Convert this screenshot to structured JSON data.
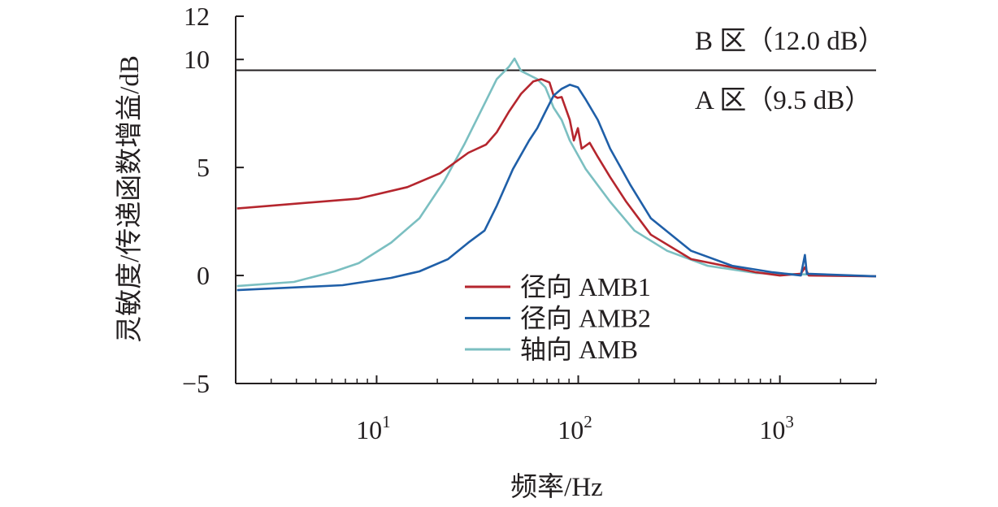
{
  "chart_data": {
    "type": "line",
    "xlabel": "频率/Hz",
    "ylabel": "灵敏度/传递函数增益/dB",
    "xscale": "log",
    "xlim": [
      2,
      3000
    ],
    "ylim": [
      -5,
      12
    ],
    "yticks": [
      -5,
      0,
      5,
      10,
      12
    ],
    "ytick_labels": [
      "−5",
      "0",
      "5",
      "10",
      "12"
    ],
    "xticks": [
      10,
      100,
      1000
    ],
    "xtick_labels": [
      {
        "base": "10",
        "exp": "1"
      },
      {
        "base": "10",
        "exp": "2"
      },
      {
        "base": "10",
        "exp": "3"
      }
    ],
    "grid": false,
    "legend_position": "center-bottom",
    "threshold": {
      "value": 9.5,
      "color": "#231f20"
    },
    "annotations": [
      {
        "text": "B 区（12.0 dB）",
        "zone": "above threshold"
      },
      {
        "text": "A 区（9.5 dB）",
        "zone": "below threshold"
      }
    ],
    "series": [
      {
        "name": "径向 AMB1",
        "color": "#b5262e",
        "x": [
          2.03,
          8.15,
          14.2,
          20.6,
          28.5,
          34.9,
          39.4,
          45.3,
          52,
          59.8,
          65.6,
          72,
          75.5,
          78.9,
          82.7,
          90.8,
          95.1,
          99.6,
          104,
          114,
          125,
          144,
          173,
          229,
          363,
          580,
          762,
          1000,
          1270,
          1330,
          1390,
          3000
        ],
        "y": [
          3.1,
          3.56,
          4.09,
          4.73,
          5.68,
          6.06,
          6.63,
          7.58,
          8.41,
          8.98,
          9.09,
          8.94,
          8.33,
          8.22,
          8.26,
          7.2,
          6.25,
          6.82,
          5.87,
          6.14,
          5.49,
          4.55,
          3.41,
          1.89,
          0.76,
          0.38,
          0.15,
          0.0,
          0.08,
          0.38,
          0.0,
          -0.04
        ]
      },
      {
        "name": "径向 AMB2",
        "color": "#1f5fa8",
        "x": [
          2.03,
          6.78,
          11.8,
          16.3,
          22.6,
          28.5,
          34.3,
          39.4,
          47.4,
          57.1,
          62.6,
          68.7,
          75.5,
          82.7,
          90.8,
          99.6,
          109,
          125,
          144,
          182,
          229,
          363,
          580,
          920,
          1270,
          1330,
          1360,
          3000
        ],
        "y": [
          -0.68,
          -0.45,
          -0.11,
          0.19,
          0.76,
          1.52,
          2.08,
          3.22,
          4.92,
          6.25,
          6.82,
          7.58,
          8.33,
          8.64,
          8.83,
          8.71,
          8.14,
          7.2,
          5.87,
          4.17,
          2.65,
          1.14,
          0.45,
          0.15,
          0.0,
          0.95,
          0.08,
          -0.04
        ]
      },
      {
        "name": "轴向 AMB",
        "color": "#7bbfc1",
        "x": [
          2.03,
          3.89,
          6.18,
          8.15,
          11.8,
          16.3,
          21.6,
          27.2,
          34.3,
          39.4,
          45.3,
          48.3,
          52,
          57.1,
          62.6,
          68.7,
          75.5,
          82.7,
          90.8,
          109,
          144,
          190,
          276,
          438,
          762,
          3000
        ],
        "y": [
          -0.49,
          -0.3,
          0.19,
          0.57,
          1.52,
          2.65,
          4.36,
          6.06,
          7.95,
          9.09,
          9.66,
          10.04,
          9.47,
          9.28,
          9.09,
          8.71,
          7.77,
          7.2,
          6.25,
          4.92,
          3.41,
          2.08,
          1.14,
          0.45,
          0.11,
          -0.04
        ]
      }
    ]
  }
}
